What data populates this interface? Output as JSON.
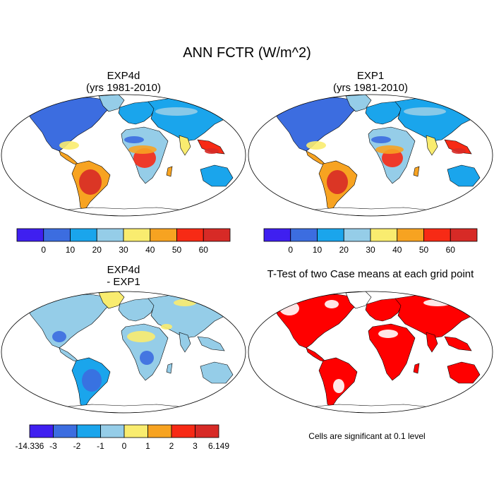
{
  "title": "ANN FCTR (W/m^2)",
  "panels": [
    {
      "name": "exp4d",
      "title_line1": "EXP4d",
      "title_line2": "(yrs 1981-2010)"
    },
    {
      "name": "exp1",
      "title_line1": "EXP1",
      "title_line2": "(yrs 1981-2010)"
    },
    {
      "name": "diff",
      "title_line1": "EXP4d",
      "title_line2": "- EXP1"
    },
    {
      "name": "ttest",
      "title_line1": "T-Test of two Case means at each grid point",
      "title_line2": ""
    }
  ],
  "colorbar_main": {
    "colors": [
      "#3f1ff0",
      "#3c6de0",
      "#1aa5ec",
      "#95cde8",
      "#f9ec6f",
      "#f7a321",
      "#f72a15",
      "#d72a26"
    ],
    "labels": [
      "0",
      "10",
      "20",
      "30",
      "40",
      "50",
      "60"
    ]
  },
  "colorbar_diff": {
    "colors": [
      "#3f1ff0",
      "#3c6de0",
      "#1aa5ec",
      "#95cde8",
      "#f9ec6f",
      "#f7a321",
      "#f72a15",
      "#d72a26"
    ],
    "labels": [
      "-14.336",
      "-3",
      "-2",
      "-1",
      "0",
      "1",
      "2",
      "3",
      "6.149"
    ]
  },
  "significance_note": "Cells are significant at 0.1 level",
  "significance_color": "#ff0000"
}
